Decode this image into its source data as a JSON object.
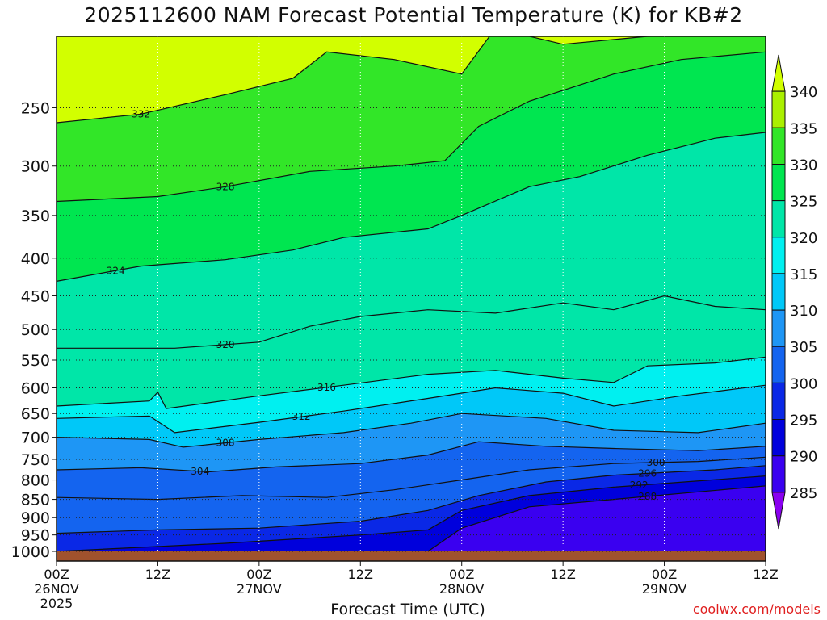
{
  "chart_data": {
    "type": "heatmap",
    "title": "2025112600 NAM Forecast Potential Temperature (K) for KB#2",
    "xlabel": "Forecast Time (UTC)",
    "ylabel": "",
    "credit": "coolwx.com/models",
    "x_range_hours": [
      0,
      84
    ],
    "y_range_hpa": [
      1000,
      200
    ],
    "y_ticks": [
      250,
      300,
      350,
      400,
      450,
      500,
      550,
      600,
      650,
      700,
      750,
      800,
      850,
      900,
      950,
      1000
    ],
    "x_ticks": [
      {
        "hour": 0,
        "lines": [
          "00Z",
          "26NOV",
          "2025"
        ]
      },
      {
        "hour": 12,
        "lines": [
          "12Z"
        ]
      },
      {
        "hour": 24,
        "lines": [
          "00Z",
          "27NOV"
        ]
      },
      {
        "hour": 36,
        "lines": [
          "12Z"
        ]
      },
      {
        "hour": 48,
        "lines": [
          "00Z",
          "28NOV"
        ]
      },
      {
        "hour": 60,
        "lines": [
          "12Z"
        ]
      },
      {
        "hour": 72,
        "lines": [
          "00Z",
          "29NOV"
        ]
      },
      {
        "hour": 84,
        "lines": [
          "12Z"
        ]
      }
    ],
    "colorbar": {
      "levels": [
        285,
        290,
        295,
        300,
        305,
        310,
        315,
        320,
        325,
        330,
        335,
        340
      ],
      "colors": [
        "#8a00f0",
        "#3a00f0",
        "#0000dc",
        "#0a28e6",
        "#1464ef",
        "#1e96f5",
        "#00c8f8",
        "#00f0f0",
        "#00e6a8",
        "#00e650",
        "#32e628",
        "#aaf000",
        "#d2ff00"
      ]
    },
    "contours": [
      {
        "value": 288,
        "label": "288",
        "label_hour": 70,
        "points": [
          [
            0,
            1100
          ],
          [
            44,
            1000
          ],
          [
            48,
            930
          ],
          [
            56,
            870
          ],
          [
            66,
            850
          ],
          [
            84,
            815
          ]
        ]
      },
      {
        "value": 292,
        "label": "292",
        "label_hour": 69,
        "points": [
          [
            0,
            1000
          ],
          [
            20,
            975
          ],
          [
            36,
            950
          ],
          [
            44,
            935
          ],
          [
            48,
            880
          ],
          [
            56,
            840
          ],
          [
            66,
            818
          ],
          [
            84,
            790
          ]
        ]
      },
      {
        "value": 296,
        "label": "296",
        "label_hour": 70,
        "points": [
          [
            0,
            945
          ],
          [
            12,
            935
          ],
          [
            24,
            930
          ],
          [
            36,
            910
          ],
          [
            44,
            880
          ],
          [
            50,
            840
          ],
          [
            58,
            805
          ],
          [
            66,
            788
          ],
          [
            78,
            775
          ],
          [
            84,
            765
          ]
        ]
      },
      {
        "value": 300,
        "label": "300",
        "label_hour": 71,
        "points": [
          [
            0,
            845
          ],
          [
            12,
            850
          ],
          [
            22,
            840
          ],
          [
            32,
            845
          ],
          [
            40,
            825
          ],
          [
            48,
            800
          ],
          [
            56,
            775
          ],
          [
            66,
            760
          ],
          [
            76,
            755
          ],
          [
            84,
            745
          ]
        ]
      },
      {
        "value": 304,
        "label": "304",
        "label_hour": 17,
        "points": [
          [
            0,
            775
          ],
          [
            10,
            770
          ],
          [
            18,
            780
          ],
          [
            26,
            768
          ],
          [
            36,
            760
          ],
          [
            44,
            740
          ],
          [
            50,
            710
          ],
          [
            58,
            720
          ],
          [
            66,
            725
          ],
          [
            76,
            730
          ],
          [
            84,
            720
          ]
        ]
      },
      {
        "value": 308,
        "label": "308",
        "label_hour": 20,
        "points": [
          [
            0,
            700
          ],
          [
            11,
            705
          ],
          [
            15,
            722
          ],
          [
            24,
            705
          ],
          [
            34,
            690
          ],
          [
            42,
            670
          ],
          [
            48,
            650
          ],
          [
            58,
            660
          ],
          [
            66,
            685
          ],
          [
            76,
            690
          ],
          [
            84,
            670
          ]
        ]
      },
      {
        "value": 312,
        "label": "312",
        "label_hour": 29,
        "points": [
          [
            0,
            660
          ],
          [
            11,
            655
          ],
          [
            14,
            690
          ],
          [
            24,
            668
          ],
          [
            34,
            645
          ],
          [
            44,
            620
          ],
          [
            52,
            600
          ],
          [
            60,
            610
          ],
          [
            66,
            635
          ],
          [
            74,
            615
          ],
          [
            84,
            595
          ]
        ]
      },
      {
        "value": 316,
        "label": "316",
        "label_hour": 32,
        "points": [
          [
            0,
            635
          ],
          [
            11,
            625
          ],
          [
            12,
            608
          ],
          [
            13,
            640
          ],
          [
            24,
            615
          ],
          [
            34,
            595
          ],
          [
            44,
            575
          ],
          [
            52,
            568
          ],
          [
            60,
            582
          ],
          [
            66,
            590
          ],
          [
            70,
            560
          ],
          [
            78,
            555
          ],
          [
            84,
            545
          ]
        ]
      },
      {
        "value": 320,
        "label": "320",
        "label_hour": 20,
        "points": [
          [
            0,
            530
          ],
          [
            14,
            530
          ],
          [
            24,
            520
          ],
          [
            30,
            495
          ],
          [
            36,
            480
          ],
          [
            44,
            470
          ],
          [
            52,
            475
          ],
          [
            60,
            460
          ],
          [
            66,
            470
          ],
          [
            72,
            450
          ],
          [
            78,
            465
          ],
          [
            84,
            470
          ]
        ]
      },
      {
        "value": 324,
        "label": "324",
        "label_hour": 7,
        "points": [
          [
            0,
            430
          ],
          [
            10,
            410
          ],
          [
            20,
            402
          ],
          [
            28,
            390
          ],
          [
            34,
            375
          ],
          [
            44,
            365
          ],
          [
            48,
            350
          ],
          [
            56,
            320
          ],
          [
            62,
            310
          ],
          [
            70,
            290
          ],
          [
            78,
            275
          ],
          [
            84,
            270
          ]
        ]
      },
      {
        "value": 328,
        "label": "328",
        "label_hour": 20,
        "points": [
          [
            0,
            335
          ],
          [
            12,
            330
          ],
          [
            20,
            320
          ],
          [
            30,
            305
          ],
          [
            40,
            300
          ],
          [
            46,
            295
          ],
          [
            50,
            265
          ],
          [
            56,
            245
          ],
          [
            66,
            225
          ],
          [
            74,
            215
          ],
          [
            84,
            210
          ]
        ]
      },
      {
        "value": 332,
        "label": "332",
        "label_hour": 10,
        "points": [
          [
            0,
            262
          ],
          [
            10,
            255
          ],
          [
            20,
            240
          ],
          [
            28,
            228
          ],
          [
            32,
            210
          ],
          [
            40,
            215
          ],
          [
            48,
            225
          ],
          [
            52,
            195
          ],
          [
            60,
            205
          ],
          [
            70,
            200
          ],
          [
            84,
            198
          ]
        ]
      }
    ]
  }
}
